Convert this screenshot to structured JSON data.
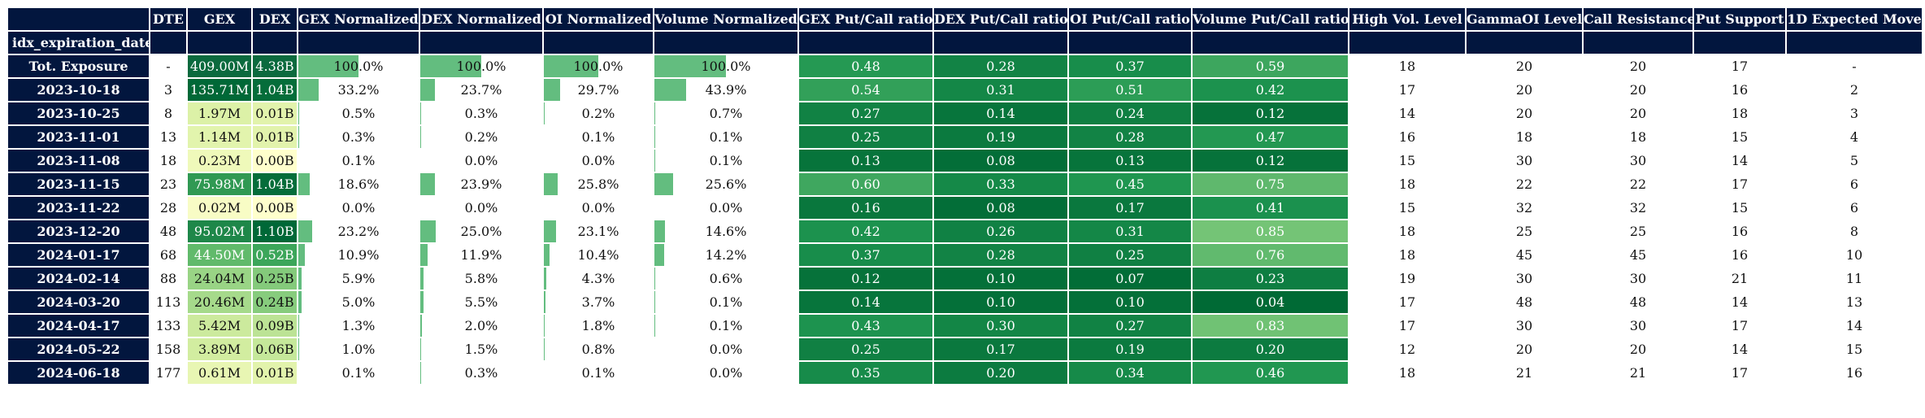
{
  "columns": [
    "DTE",
    "GEX",
    "DEX",
    "GEX Normalized",
    "DEX Normalized",
    "OI Normalized",
    "Volume Normalized",
    "GEX Put/Call ratio",
    "DEX Put/Call ratio",
    "OI Put/Call ratio",
    "Volume Put/Call ratio",
    "High Vol. Level",
    "GammaOI Level",
    "Call Resistance",
    "Put Support",
    "1D Expected Move"
  ],
  "index_name": "idx_expiration_date",
  "colors": {
    "header_bg": "#02163e",
    "bar": "#63bd7f"
  },
  "rows": [
    {
      "label": "Tot. Exposure",
      "dte": "-",
      "gex": "409.00M",
      "dex": "4.38B",
      "gex_n": "100.0%",
      "dex_n": "100.0%",
      "oi_n": "100.0%",
      "vol_n": "100.0%",
      "gex_pc": "0.48",
      "dex_pc": "0.28",
      "oi_pc": "0.37",
      "vol_pc": "0.59",
      "hvl": "18",
      "goi": "20",
      "cr": "20",
      "ps": "17",
      "em": "-"
    },
    {
      "label": "2023-10-18",
      "dte": "3",
      "gex": "135.71M",
      "dex": "1.04B",
      "gex_n": "33.2%",
      "dex_n": "23.7%",
      "oi_n": "29.7%",
      "vol_n": "43.9%",
      "gex_pc": "0.54",
      "dex_pc": "0.31",
      "oi_pc": "0.51",
      "vol_pc": "0.42",
      "hvl": "17",
      "goi": "20",
      "cr": "20",
      "ps": "16",
      "em": "2"
    },
    {
      "label": "2023-10-25",
      "dte": "8",
      "gex": "1.97M",
      "dex": "0.01B",
      "gex_n": "0.5%",
      "dex_n": "0.3%",
      "oi_n": "0.2%",
      "vol_n": "0.7%",
      "gex_pc": "0.27",
      "dex_pc": "0.14",
      "oi_pc": "0.24",
      "vol_pc": "0.12",
      "hvl": "14",
      "goi": "20",
      "cr": "20",
      "ps": "18",
      "em": "3"
    },
    {
      "label": "2023-11-01",
      "dte": "13",
      "gex": "1.14M",
      "dex": "0.01B",
      "gex_n": "0.3%",
      "dex_n": "0.2%",
      "oi_n": "0.1%",
      "vol_n": "0.1%",
      "gex_pc": "0.25",
      "dex_pc": "0.19",
      "oi_pc": "0.28",
      "vol_pc": "0.47",
      "hvl": "16",
      "goi": "18",
      "cr": "18",
      "ps": "15",
      "em": "4"
    },
    {
      "label": "2023-11-08",
      "dte": "18",
      "gex": "0.23M",
      "dex": "0.00B",
      "gex_n": "0.1%",
      "dex_n": "0.0%",
      "oi_n": "0.0%",
      "vol_n": "0.1%",
      "gex_pc": "0.13",
      "dex_pc": "0.08",
      "oi_pc": "0.13",
      "vol_pc": "0.12",
      "hvl": "15",
      "goi": "30",
      "cr": "30",
      "ps": "14",
      "em": "5"
    },
    {
      "label": "2023-11-15",
      "dte": "23",
      "gex": "75.98M",
      "dex": "1.04B",
      "gex_n": "18.6%",
      "dex_n": "23.9%",
      "oi_n": "25.8%",
      "vol_n": "25.6%",
      "gex_pc": "0.60",
      "dex_pc": "0.33",
      "oi_pc": "0.45",
      "vol_pc": "0.75",
      "hvl": "18",
      "goi": "22",
      "cr": "22",
      "ps": "17",
      "em": "6"
    },
    {
      "label": "2023-11-22",
      "dte": "28",
      "gex": "0.02M",
      "dex": "0.00B",
      "gex_n": "0.0%",
      "dex_n": "0.0%",
      "oi_n": "0.0%",
      "vol_n": "0.0%",
      "gex_pc": "0.16",
      "dex_pc": "0.08",
      "oi_pc": "0.17",
      "vol_pc": "0.41",
      "hvl": "15",
      "goi": "32",
      "cr": "32",
      "ps": "15",
      "em": "6"
    },
    {
      "label": "2023-12-20",
      "dte": "48",
      "gex": "95.02M",
      "dex": "1.10B",
      "gex_n": "23.2%",
      "dex_n": "25.0%",
      "oi_n": "23.1%",
      "vol_n": "14.6%",
      "gex_pc": "0.42",
      "dex_pc": "0.26",
      "oi_pc": "0.31",
      "vol_pc": "0.85",
      "hvl": "18",
      "goi": "25",
      "cr": "25",
      "ps": "16",
      "em": "8"
    },
    {
      "label": "2024-01-17",
      "dte": "68",
      "gex": "44.50M",
      "dex": "0.52B",
      "gex_n": "10.9%",
      "dex_n": "11.9%",
      "oi_n": "10.4%",
      "vol_n": "14.2%",
      "gex_pc": "0.37",
      "dex_pc": "0.28",
      "oi_pc": "0.25",
      "vol_pc": "0.76",
      "hvl": "18",
      "goi": "45",
      "cr": "45",
      "ps": "16",
      "em": "10"
    },
    {
      "label": "2024-02-14",
      "dte": "88",
      "gex": "24.04M",
      "dex": "0.25B",
      "gex_n": "5.9%",
      "dex_n": "5.8%",
      "oi_n": "4.3%",
      "vol_n": "0.6%",
      "gex_pc": "0.12",
      "dex_pc": "0.10",
      "oi_pc": "0.07",
      "vol_pc": "0.23",
      "hvl": "19",
      "goi": "30",
      "cr": "30",
      "ps": "21",
      "em": "11"
    },
    {
      "label": "2024-03-20",
      "dte": "113",
      "gex": "20.46M",
      "dex": "0.24B",
      "gex_n": "5.0%",
      "dex_n": "5.5%",
      "oi_n": "3.7%",
      "vol_n": "0.1%",
      "gex_pc": "0.14",
      "dex_pc": "0.10",
      "oi_pc": "0.10",
      "vol_pc": "0.04",
      "hvl": "17",
      "goi": "48",
      "cr": "48",
      "ps": "14",
      "em": "13"
    },
    {
      "label": "2024-04-17",
      "dte": "133",
      "gex": "5.42M",
      "dex": "0.09B",
      "gex_n": "1.3%",
      "dex_n": "2.0%",
      "oi_n": "1.8%",
      "vol_n": "0.1%",
      "gex_pc": "0.43",
      "dex_pc": "0.30",
      "oi_pc": "0.27",
      "vol_pc": "0.83",
      "hvl": "17",
      "goi": "30",
      "cr": "30",
      "ps": "17",
      "em": "14"
    },
    {
      "label": "2024-05-22",
      "dte": "158",
      "gex": "3.89M",
      "dex": "0.06B",
      "gex_n": "1.0%",
      "dex_n": "1.5%",
      "oi_n": "0.8%",
      "vol_n": "0.0%",
      "gex_pc": "0.25",
      "dex_pc": "0.17",
      "oi_pc": "0.19",
      "vol_pc": "0.20",
      "hvl": "12",
      "goi": "20",
      "cr": "20",
      "ps": "14",
      "em": "15"
    },
    {
      "label": "2024-06-18",
      "dte": "177",
      "gex": "0.61M",
      "dex": "0.01B",
      "gex_n": "0.1%",
      "dex_n": "0.3%",
      "oi_n": "0.1%",
      "vol_n": "0.0%",
      "gex_pc": "0.35",
      "dex_pc": "0.20",
      "oi_pc": "0.34",
      "vol_pc": "0.46",
      "hvl": "18",
      "goi": "21",
      "cr": "21",
      "ps": "17",
      "em": "16"
    }
  ]
}
